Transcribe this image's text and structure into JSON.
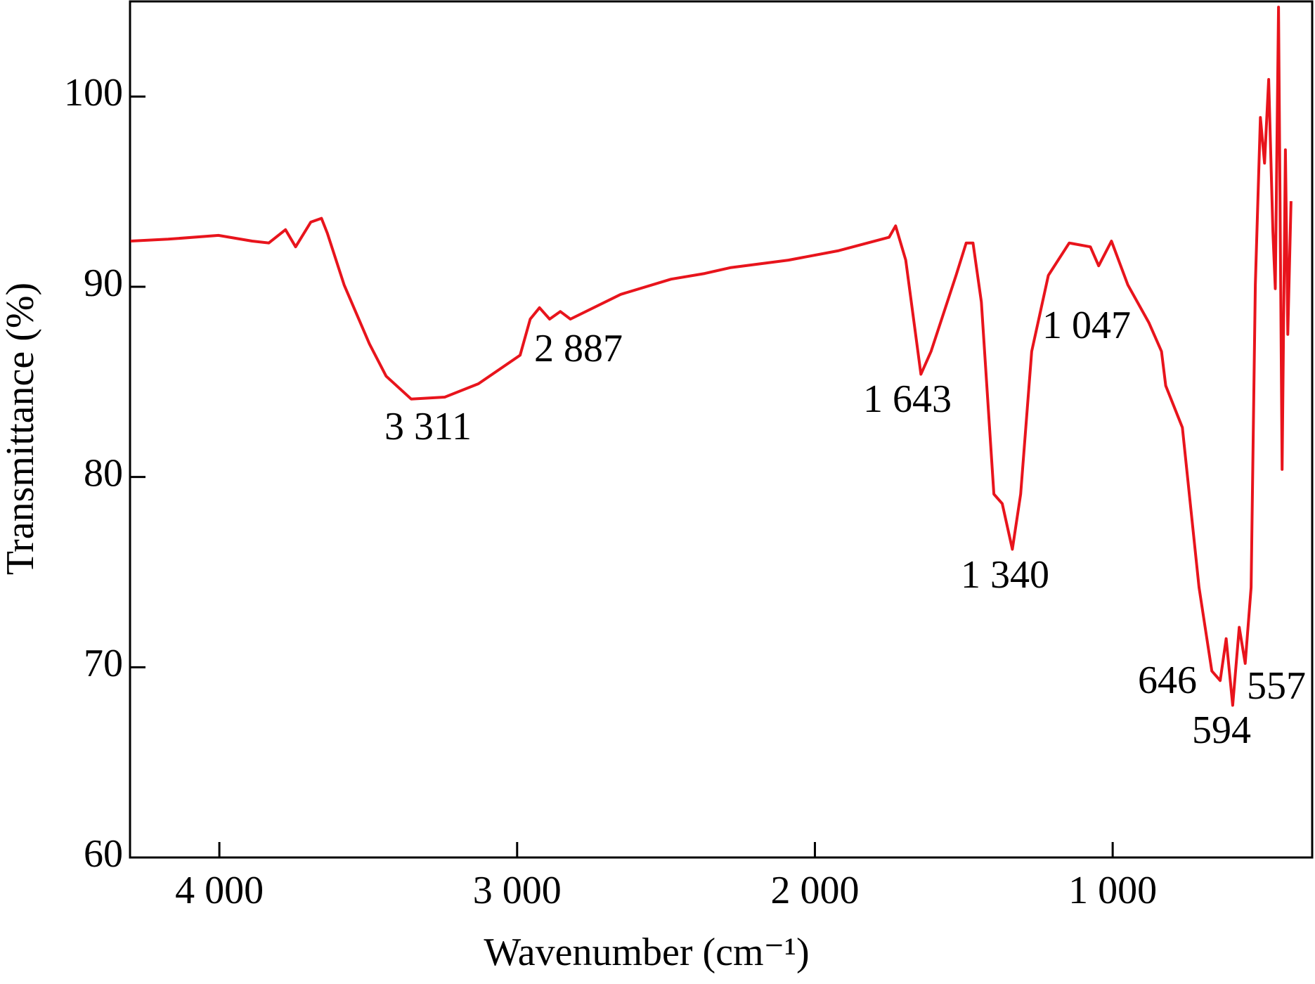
{
  "chart_data": {
    "type": "line",
    "x_label": "Wavenumber (cm⁻¹)",
    "y_label": "Transmittance (%)",
    "color": "#e8141c",
    "xlim": [
      4300,
      330
    ],
    "ylim": [
      60,
      105
    ],
    "xticks": [
      {
        "value": 4000,
        "label": "4 000"
      },
      {
        "value": 3000,
        "label": "3 000"
      },
      {
        "value": 2000,
        "label": "2 000"
      },
      {
        "value": 1000,
        "label": "1 000"
      }
    ],
    "yticks": [
      60,
      70,
      80,
      90,
      100
    ],
    "annotations": [
      "3 311",
      "2 887",
      "1 643",
      "1 340",
      "1 047",
      "646",
      "594",
      "557"
    ],
    "x": [
      4298,
      4172,
      4003,
      3890,
      3834,
      3778,
      3744,
      3693,
      3657,
      3637,
      3581,
      3496,
      3440,
      3356,
      3243,
      3130,
      2990,
      2956,
      2925,
      2891,
      2855,
      2821,
      2652,
      2483,
      2370,
      2285,
      2089,
      1920,
      1751,
      1729,
      1695,
      1644,
      1610,
      1568,
      1526,
      1492,
      1469,
      1441,
      1399,
      1371,
      1337,
      1309,
      1272,
      1216,
      1146,
      1075,
      1047,
      1004,
      949,
      878,
      836,
      822,
      766,
      710,
      667,
      639,
      619,
      597,
      575,
      555,
      535,
      521,
      504,
      490,
      476,
      462,
      454,
      443,
      431,
      420,
      412,
      401
    ],
    "values": [
      92.4,
      92.5,
      92.7,
      92.4,
      92.3,
      93.0,
      92.1,
      93.4,
      93.6,
      92.8,
      90.1,
      87.0,
      85.3,
      84.1,
      84.2,
      84.9,
      86.4,
      88.3,
      88.9,
      88.3,
      88.7,
      88.3,
      89.6,
      90.4,
      90.7,
      91.0,
      91.4,
      91.9,
      92.6,
      93.2,
      91.4,
      85.4,
      86.6,
      88.6,
      90.6,
      92.3,
      92.3,
      89.2,
      79.1,
      78.6,
      76.2,
      79.1,
      86.6,
      90.6,
      92.3,
      92.1,
      91.1,
      92.4,
      90.1,
      88.1,
      86.6,
      84.8,
      82.6,
      74.2,
      69.8,
      69.3,
      71.5,
      68.0,
      72.1,
      70.2,
      74.2,
      90.1,
      98.9,
      96.5,
      100.9,
      92.9,
      89.9,
      104.7,
      80.4,
      97.2,
      87.5,
      94.5
    ]
  }
}
